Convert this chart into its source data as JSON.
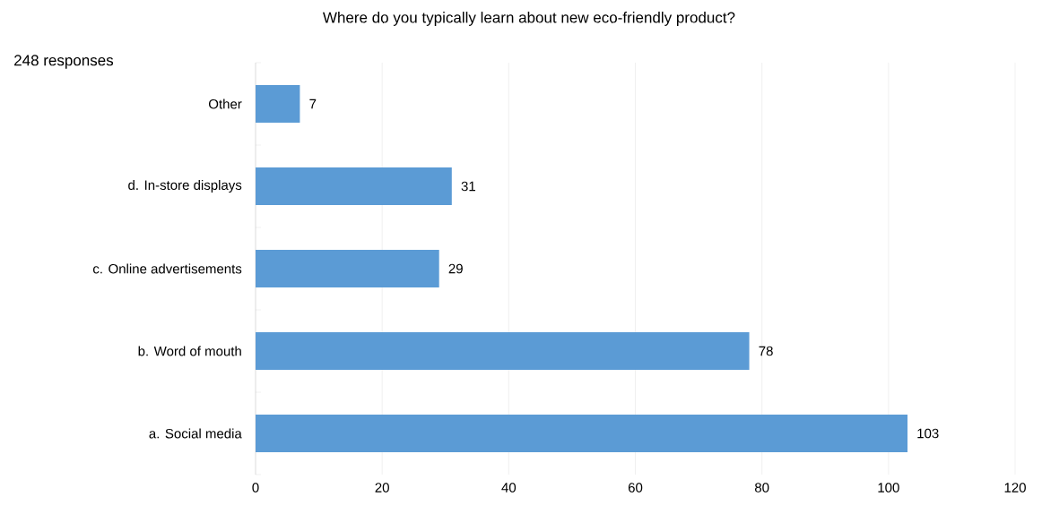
{
  "chart_data": {
    "type": "bar",
    "orientation": "horizontal",
    "title": "Where do you typically learn about new eco-friendly product?",
    "subtitle": "248 responses",
    "categories": [
      "Other",
      "d. In-store displays",
      "c. Online advertisements",
      "b. Word of mouth",
      "a. Social media"
    ],
    "values": [
      7,
      31,
      29,
      78,
      103
    ],
    "color": "#5b9bd5",
    "xlim": [
      0,
      120
    ],
    "xticks": [
      0,
      20,
      40,
      60,
      80,
      100,
      120
    ],
    "grid": "x",
    "data_labels": true
  }
}
